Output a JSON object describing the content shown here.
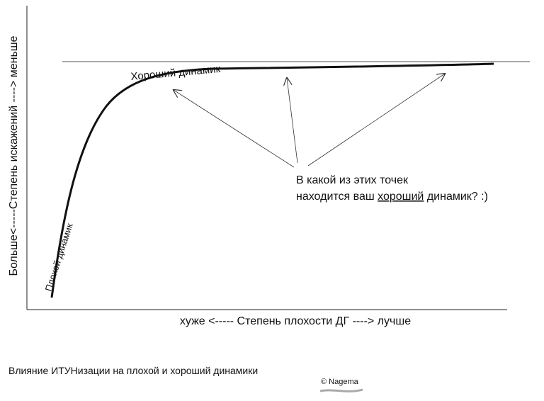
{
  "axes": {
    "y_label": "Больше<-----Степень искажений ----> меньше",
    "x_label": "хуже <----- Степень плохости ДГ ----> лучше"
  },
  "curve_labels": {
    "good": "Хороший динамик",
    "bad": "Плохой динамик"
  },
  "question": {
    "line1": "В какой из этих точек",
    "line2_before": "находится ваш",
    "line2_emphasis": "хороший",
    "line2_after": "динамик? :)"
  },
  "caption": "Влияние ИТУНизации на плохой и хороший динамики",
  "credit": "© Nagema"
}
